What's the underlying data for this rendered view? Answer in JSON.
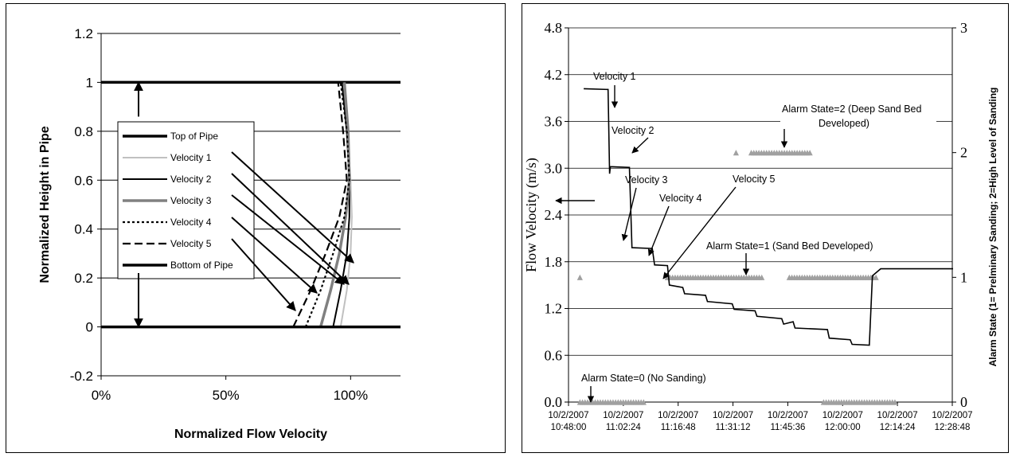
{
  "chart_data": [
    {
      "type": "line",
      "title": "",
      "xlabel": "Normalized Flow Velocity",
      "ylabel": "Normalized Height in Pipe",
      "xlim": [
        0,
        1.2
      ],
      "ylim": [
        -0.2,
        1.2
      ],
      "x_ticks": [
        "0%",
        "50%",
        "100%"
      ],
      "y_ticks": [
        "-0.2",
        "0",
        "0.2",
        "0.4",
        "0.6",
        "0.8",
        "1",
        "1.2"
      ],
      "grid": "horizontal",
      "legend_position": "inside-left",
      "legend": [
        "Top of Pipe",
        "Velocity 1",
        "Velocity 2",
        "Velocity 3",
        "Velocity 4",
        "Velocity 5",
        "Bottom of Pipe"
      ],
      "series": [
        {
          "name": "Top of Pipe",
          "color": "#000000",
          "style": "solid-thick",
          "points": [
            [
              0,
              1
            ],
            [
              1.2,
              1
            ]
          ]
        },
        {
          "name": "Velocity 1",
          "color": "#c0c0c0",
          "style": "solid",
          "points": [
            [
              0.96,
              0.0
            ],
            [
              0.985,
              0.15
            ],
            [
              1.0,
              0.3
            ],
            [
              1.005,
              0.45
            ],
            [
              1.0,
              0.6
            ],
            [
              0.985,
              0.8
            ],
            [
              0.965,
              1.0
            ]
          ]
        },
        {
          "name": "Velocity 2",
          "color": "#000000",
          "style": "solid",
          "points": [
            [
              0.93,
              0.0
            ],
            [
              0.96,
              0.15
            ],
            [
              0.985,
              0.3
            ],
            [
              0.995,
              0.45
            ],
            [
              0.995,
              0.6
            ],
            [
              0.985,
              0.8
            ],
            [
              0.965,
              1.0
            ]
          ]
        },
        {
          "name": "Velocity 3",
          "color": "#808080",
          "style": "solid-thick",
          "points": [
            [
              0.88,
              0.0
            ],
            [
              0.92,
              0.15
            ],
            [
              0.955,
              0.3
            ],
            [
              0.98,
              0.45
            ],
            [
              0.995,
              0.6
            ],
            [
              0.99,
              0.8
            ],
            [
              0.975,
              1.0
            ]
          ]
        },
        {
          "name": "Velocity 4",
          "color": "#000000",
          "style": "dotted",
          "points": [
            [
              0.82,
              0.0
            ],
            [
              0.88,
              0.15
            ],
            [
              0.93,
              0.3
            ],
            [
              0.975,
              0.45
            ],
            [
              0.995,
              0.6
            ],
            [
              0.985,
              0.8
            ],
            [
              0.96,
              1.0
            ]
          ]
        },
        {
          "name": "Velocity 5",
          "color": "#000000",
          "style": "dashed",
          "points": [
            [
              0.77,
              0.0
            ],
            [
              0.84,
              0.15
            ],
            [
              0.9,
              0.3
            ],
            [
              0.955,
              0.45
            ],
            [
              0.985,
              0.6
            ],
            [
              0.97,
              0.8
            ],
            [
              0.95,
              1.0
            ]
          ]
        },
        {
          "name": "Bottom of Pipe",
          "color": "#000000",
          "style": "solid-thick",
          "points": [
            [
              0,
              0
            ],
            [
              1.2,
              0
            ]
          ]
        }
      ]
    },
    {
      "type": "line",
      "title": "",
      "xlabel": "",
      "ylabel": "Flow Velocity (m/s)",
      "y2label": "Alarm State (1= Prelminary Sanding; 2=High Level of Sanding",
      "ylim": [
        0,
        4.8
      ],
      "y2lim": [
        0,
        3
      ],
      "y_ticks": [
        "0.0",
        "0.6",
        "1.2",
        "1.8",
        "2.4",
        "3.0",
        "3.6",
        "4.2",
        "4.8"
      ],
      "y2_ticks": [
        "0",
        "1",
        "2",
        "3"
      ],
      "x_ticks": [
        [
          "10/2/2007",
          "10:48:00"
        ],
        [
          "10/2/2007",
          "11:02:24"
        ],
        [
          "10/2/2007",
          "11:16:48"
        ],
        [
          "10/2/2007",
          "11:31:12"
        ],
        [
          "10/2/2007",
          "11:45:36"
        ],
        [
          "10/2/2007",
          "12:00:00"
        ],
        [
          "10/2/2007",
          "12:14:24"
        ],
        [
          "10/2/2007",
          "12:28:48"
        ]
      ],
      "grid": "horizontal",
      "series": [
        {
          "name": "Flow Velocity",
          "axis": "left",
          "color": "#000000",
          "points": [
            [
              "10:52:00",
              4.02
            ],
            [
              "10:58:24",
              4.01
            ],
            [
              "10:58:48",
              2.93
            ],
            [
              "10:59:00",
              3.02
            ],
            [
              "11:04:00",
              3.01
            ],
            [
              "11:04:40",
              1.98
            ],
            [
              "11:10:00",
              1.97
            ],
            [
              "11:10:36",
              1.76
            ],
            [
              "11:14:00",
              1.75
            ],
            [
              "11:14:30",
              1.5
            ],
            [
              "11:18:00",
              1.47
            ],
            [
              "11:18:30",
              1.39
            ],
            [
              "11:24:00",
              1.37
            ],
            [
              "11:24:30",
              1.29
            ],
            [
              "11:31:00",
              1.26
            ],
            [
              "11:31:30",
              1.19
            ],
            [
              "11:37:00",
              1.17
            ],
            [
              "11:37:30",
              1.1
            ],
            [
              "11:44:00",
              1.07
            ],
            [
              "11:44:30",
              1.0
            ],
            [
              "11:47:00",
              1.03
            ],
            [
              "11:47:30",
              0.95
            ],
            [
              "11:56:00",
              0.93
            ],
            [
              "11:56:30",
              0.82
            ],
            [
              "12:02:00",
              0.8
            ],
            [
              "12:02:30",
              0.74
            ],
            [
              "12:07:00",
              0.73
            ],
            [
              "12:07:50",
              1.62
            ],
            [
              "12:10:00",
              1.71
            ],
            [
              "12:29:00",
              1.71
            ]
          ]
        },
        {
          "name": "Alarm State",
          "axis": "right",
          "color": "#a0a0a0",
          "marker": "triangle",
          "segments": [
            {
              "state": 0,
              "from": "10:51:00",
              "to": "11:08:00"
            },
            {
              "state": 0,
              "from": "11:55:00",
              "to": "12:14:00"
            },
            {
              "state": 1,
              "from": "10:51:00",
              "to": "10:51:00"
            },
            {
              "state": 1,
              "from": "11:14:00",
              "to": "11:39:00"
            },
            {
              "state": 1,
              "from": "11:46:00",
              "to": "12:09:00"
            },
            {
              "state": 2,
              "from": "11:32:00",
              "to": "11:32:00"
            },
            {
              "state": 2,
              "from": "11:36:00",
              "to": "11:52:00"
            }
          ]
        }
      ],
      "annotations": [
        {
          "text": "Velocity 1"
        },
        {
          "text": "Velocity 2"
        },
        {
          "text": "Velocity 3"
        },
        {
          "text": "Velocity 4"
        },
        {
          "text": "Velocity 5"
        },
        {
          "text": "Alarm State=2 (Deep Sand Bed"
        },
        {
          "text": "Developed)"
        },
        {
          "text": "Alarm State=1 (Sand Bed Developed)"
        },
        {
          "text": "Alarm State=0 (No Sanding)"
        }
      ]
    }
  ]
}
